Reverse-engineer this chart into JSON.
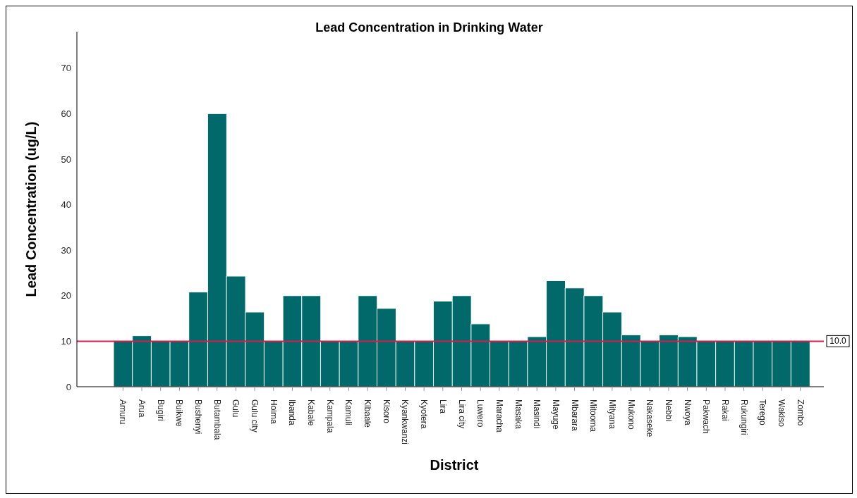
{
  "chart_data": {
    "type": "bar",
    "title": "Lead Concentration in Drinking Water",
    "xlabel": "District",
    "ylabel": "Lead Concentration (ug/L)",
    "categories": [
      "Amuru",
      "Arua",
      "Bugiri",
      "Buikwe",
      "Bushenyi",
      "Butambala",
      "Gulu",
      "Gulu city",
      "Hoima",
      "Ibanda",
      "Kabale",
      "Kampala",
      "Kamuli",
      "Kibaale",
      "Kisoro",
      "Kyankwanzi",
      "Kyotera",
      "Lira",
      "Lira city",
      "Luwero",
      "Maracha",
      "Masaka",
      "Masindi",
      "Mayuge",
      "Mbarara",
      "Mitooma",
      "Mityana",
      "Mukono",
      "Nakaseke",
      "Nebbi",
      "Nwoya",
      "Pakwach",
      "Rakai",
      "Rukungiri",
      "Terego",
      "Wakiso",
      "Zombo"
    ],
    "values": [
      10,
      11.2,
      10,
      10,
      20.8,
      60,
      24.3,
      16.4,
      10,
      20,
      20,
      10,
      10,
      20,
      17.2,
      10,
      10,
      18.8,
      20,
      13.8,
      10,
      10,
      11,
      23.3,
      21.7,
      20,
      16.4,
      11.4,
      10,
      11.4,
      11,
      10,
      10,
      10,
      10,
      10,
      10
    ],
    "color": "#02696a",
    "ylim": [
      0,
      78
    ],
    "yticks": [
      0,
      10,
      20,
      30,
      40,
      50,
      60,
      70
    ],
    "grid": false,
    "ref_lines": [
      {
        "axis": "y",
        "value": 10,
        "label": "10.0",
        "color": "#e0184a"
      }
    ]
  }
}
